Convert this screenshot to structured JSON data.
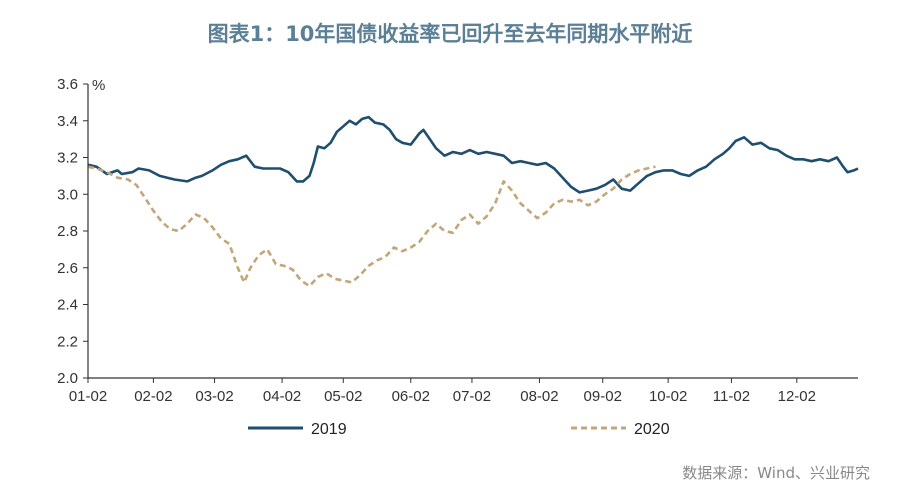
{
  "title": "图表1：10年国债收益率已回升至去年同期水平附近",
  "source": "数据来源：Wind、兴业研究",
  "colors": {
    "s2019": "#1f4e6e",
    "s2020": "#c3a57a",
    "axis": "#333333",
    "title": "#5b7f95"
  },
  "chart_data": {
    "type": "line",
    "title": "图表1：10年国债收益率已回升至去年同期水平附近",
    "ylabel": "%",
    "ylim": [
      2.0,
      3.6
    ],
    "yticks": [
      "2.0",
      "2.2",
      "2.4",
      "2.6",
      "2.8",
      "3.0",
      "3.2",
      "3.4",
      "3.6"
    ],
    "xlim": [
      1,
      366
    ],
    "xticks": [
      {
        "day": 1,
        "label": "01-02"
      },
      {
        "day": 32,
        "label": "02-02"
      },
      {
        "day": 61,
        "label": "03-02"
      },
      {
        "day": 93,
        "label": "04-02"
      },
      {
        "day": 122,
        "label": "05-02"
      },
      {
        "day": 154,
        "label": "06-02"
      },
      {
        "day": 183,
        "label": "07-02"
      },
      {
        "day": 215,
        "label": "08-02"
      },
      {
        "day": 245,
        "label": "09-02"
      },
      {
        "day": 276,
        "label": "10-02"
      },
      {
        "day": 306,
        "label": "11-02"
      },
      {
        "day": 337,
        "label": "12-02"
      }
    ],
    "legend": "bottom",
    "series": [
      {
        "name": "2019",
        "style": "solid",
        "points": [
          [
            1,
            3.16
          ],
          [
            5,
            3.15
          ],
          [
            10,
            3.11
          ],
          [
            15,
            3.13
          ],
          [
            17,
            3.11
          ],
          [
            22,
            3.12
          ],
          [
            25,
            3.14
          ],
          [
            30,
            3.13
          ],
          [
            35,
            3.1
          ],
          [
            42,
            3.08
          ],
          [
            48,
            3.07
          ],
          [
            52,
            3.09
          ],
          [
            55,
            3.1
          ],
          [
            60,
            3.13
          ],
          [
            64,
            3.16
          ],
          [
            68,
            3.18
          ],
          [
            72,
            3.19
          ],
          [
            76,
            3.21
          ],
          [
            80,
            3.15
          ],
          [
            84,
            3.14
          ],
          [
            88,
            3.14
          ],
          [
            92,
            3.14
          ],
          [
            96,
            3.12
          ],
          [
            100,
            3.07
          ],
          [
            103,
            3.07
          ],
          [
            106,
            3.1
          ],
          [
            108,
            3.17
          ],
          [
            110,
            3.26
          ],
          [
            113,
            3.25
          ],
          [
            116,
            3.28
          ],
          [
            119,
            3.34
          ],
          [
            122,
            3.37
          ],
          [
            125,
            3.4
          ],
          [
            128,
            3.38
          ],
          [
            131,
            3.41
          ],
          [
            134,
            3.42
          ],
          [
            137,
            3.39
          ],
          [
            141,
            3.38
          ],
          [
            144,
            3.35
          ],
          [
            147,
            3.3
          ],
          [
            150,
            3.28
          ],
          [
            154,
            3.27
          ],
          [
            158,
            3.33
          ],
          [
            160,
            3.35
          ],
          [
            163,
            3.3
          ],
          [
            166,
            3.25
          ],
          [
            170,
            3.21
          ],
          [
            174,
            3.23
          ],
          [
            178,
            3.22
          ],
          [
            182,
            3.24
          ],
          [
            186,
            3.22
          ],
          [
            190,
            3.23
          ],
          [
            194,
            3.22
          ],
          [
            198,
            3.21
          ],
          [
            202,
            3.17
          ],
          [
            206,
            3.18
          ],
          [
            210,
            3.17
          ],
          [
            214,
            3.16
          ],
          [
            218,
            3.17
          ],
          [
            222,
            3.14
          ],
          [
            226,
            3.09
          ],
          [
            230,
            3.04
          ],
          [
            234,
            3.01
          ],
          [
            238,
            3.02
          ],
          [
            242,
            3.03
          ],
          [
            246,
            3.05
          ],
          [
            250,
            3.08
          ],
          [
            254,
            3.03
          ],
          [
            258,
            3.02
          ],
          [
            262,
            3.06
          ],
          [
            266,
            3.1
          ],
          [
            270,
            3.12
          ],
          [
            274,
            3.13
          ],
          [
            278,
            3.13
          ],
          [
            282,
            3.11
          ],
          [
            286,
            3.1
          ],
          [
            290,
            3.13
          ],
          [
            294,
            3.15
          ],
          [
            298,
            3.19
          ],
          [
            302,
            3.22
          ],
          [
            305,
            3.25
          ],
          [
            308,
            3.29
          ],
          [
            312,
            3.31
          ],
          [
            316,
            3.27
          ],
          [
            320,
            3.28
          ],
          [
            324,
            3.25
          ],
          [
            328,
            3.24
          ],
          [
            332,
            3.21
          ],
          [
            336,
            3.19
          ],
          [
            340,
            3.19
          ],
          [
            344,
            3.18
          ],
          [
            348,
            3.19
          ],
          [
            352,
            3.18
          ],
          [
            356,
            3.2
          ],
          [
            359,
            3.15
          ],
          [
            361,
            3.12
          ],
          [
            364,
            3.13
          ],
          [
            366,
            3.14
          ]
        ]
      },
      {
        "name": "2020",
        "style": "dashed",
        "points": [
          [
            1,
            3.15
          ],
          [
            5,
            3.14
          ],
          [
            10,
            3.12
          ],
          [
            15,
            3.09
          ],
          [
            20,
            3.08
          ],
          [
            24,
            3.05
          ],
          [
            28,
            2.98
          ],
          [
            32,
            2.91
          ],
          [
            36,
            2.85
          ],
          [
            40,
            2.81
          ],
          [
            44,
            2.8
          ],
          [
            48,
            2.84
          ],
          [
            52,
            2.89
          ],
          [
            56,
            2.87
          ],
          [
            60,
            2.82
          ],
          [
            64,
            2.76
          ],
          [
            68,
            2.73
          ],
          [
            72,
            2.6
          ],
          [
            75,
            2.52
          ],
          [
            78,
            2.6
          ],
          [
            82,
            2.67
          ],
          [
            86,
            2.7
          ],
          [
            90,
            2.62
          ],
          [
            94,
            2.61
          ],
          [
            98,
            2.59
          ],
          [
            102,
            2.53
          ],
          [
            106,
            2.5
          ],
          [
            110,
            2.55
          ],
          [
            114,
            2.57
          ],
          [
            118,
            2.54
          ],
          [
            122,
            2.53
          ],
          [
            126,
            2.52
          ],
          [
            130,
            2.56
          ],
          [
            134,
            2.61
          ],
          [
            138,
            2.64
          ],
          [
            142,
            2.66
          ],
          [
            146,
            2.71
          ],
          [
            150,
            2.69
          ],
          [
            154,
            2.71
          ],
          [
            158,
            2.74
          ],
          [
            162,
            2.8
          ],
          [
            166,
            2.84
          ],
          [
            170,
            2.8
          ],
          [
            174,
            2.79
          ],
          [
            178,
            2.86
          ],
          [
            182,
            2.89
          ],
          [
            186,
            2.84
          ],
          [
            190,
            2.88
          ],
          [
            194,
            2.95
          ],
          [
            198,
            3.07
          ],
          [
            202,
            3.02
          ],
          [
            206,
            2.95
          ],
          [
            210,
            2.91
          ],
          [
            214,
            2.87
          ],
          [
            218,
            2.9
          ],
          [
            222,
            2.95
          ],
          [
            226,
            2.97
          ],
          [
            230,
            2.96
          ],
          [
            234,
            2.97
          ],
          [
            238,
            2.94
          ],
          [
            242,
            2.96
          ],
          [
            246,
            3.0
          ],
          [
            250,
            3.03
          ],
          [
            254,
            3.08
          ],
          [
            258,
            3.11
          ],
          [
            262,
            3.13
          ],
          [
            266,
            3.14
          ],
          [
            270,
            3.15
          ]
        ]
      }
    ]
  }
}
